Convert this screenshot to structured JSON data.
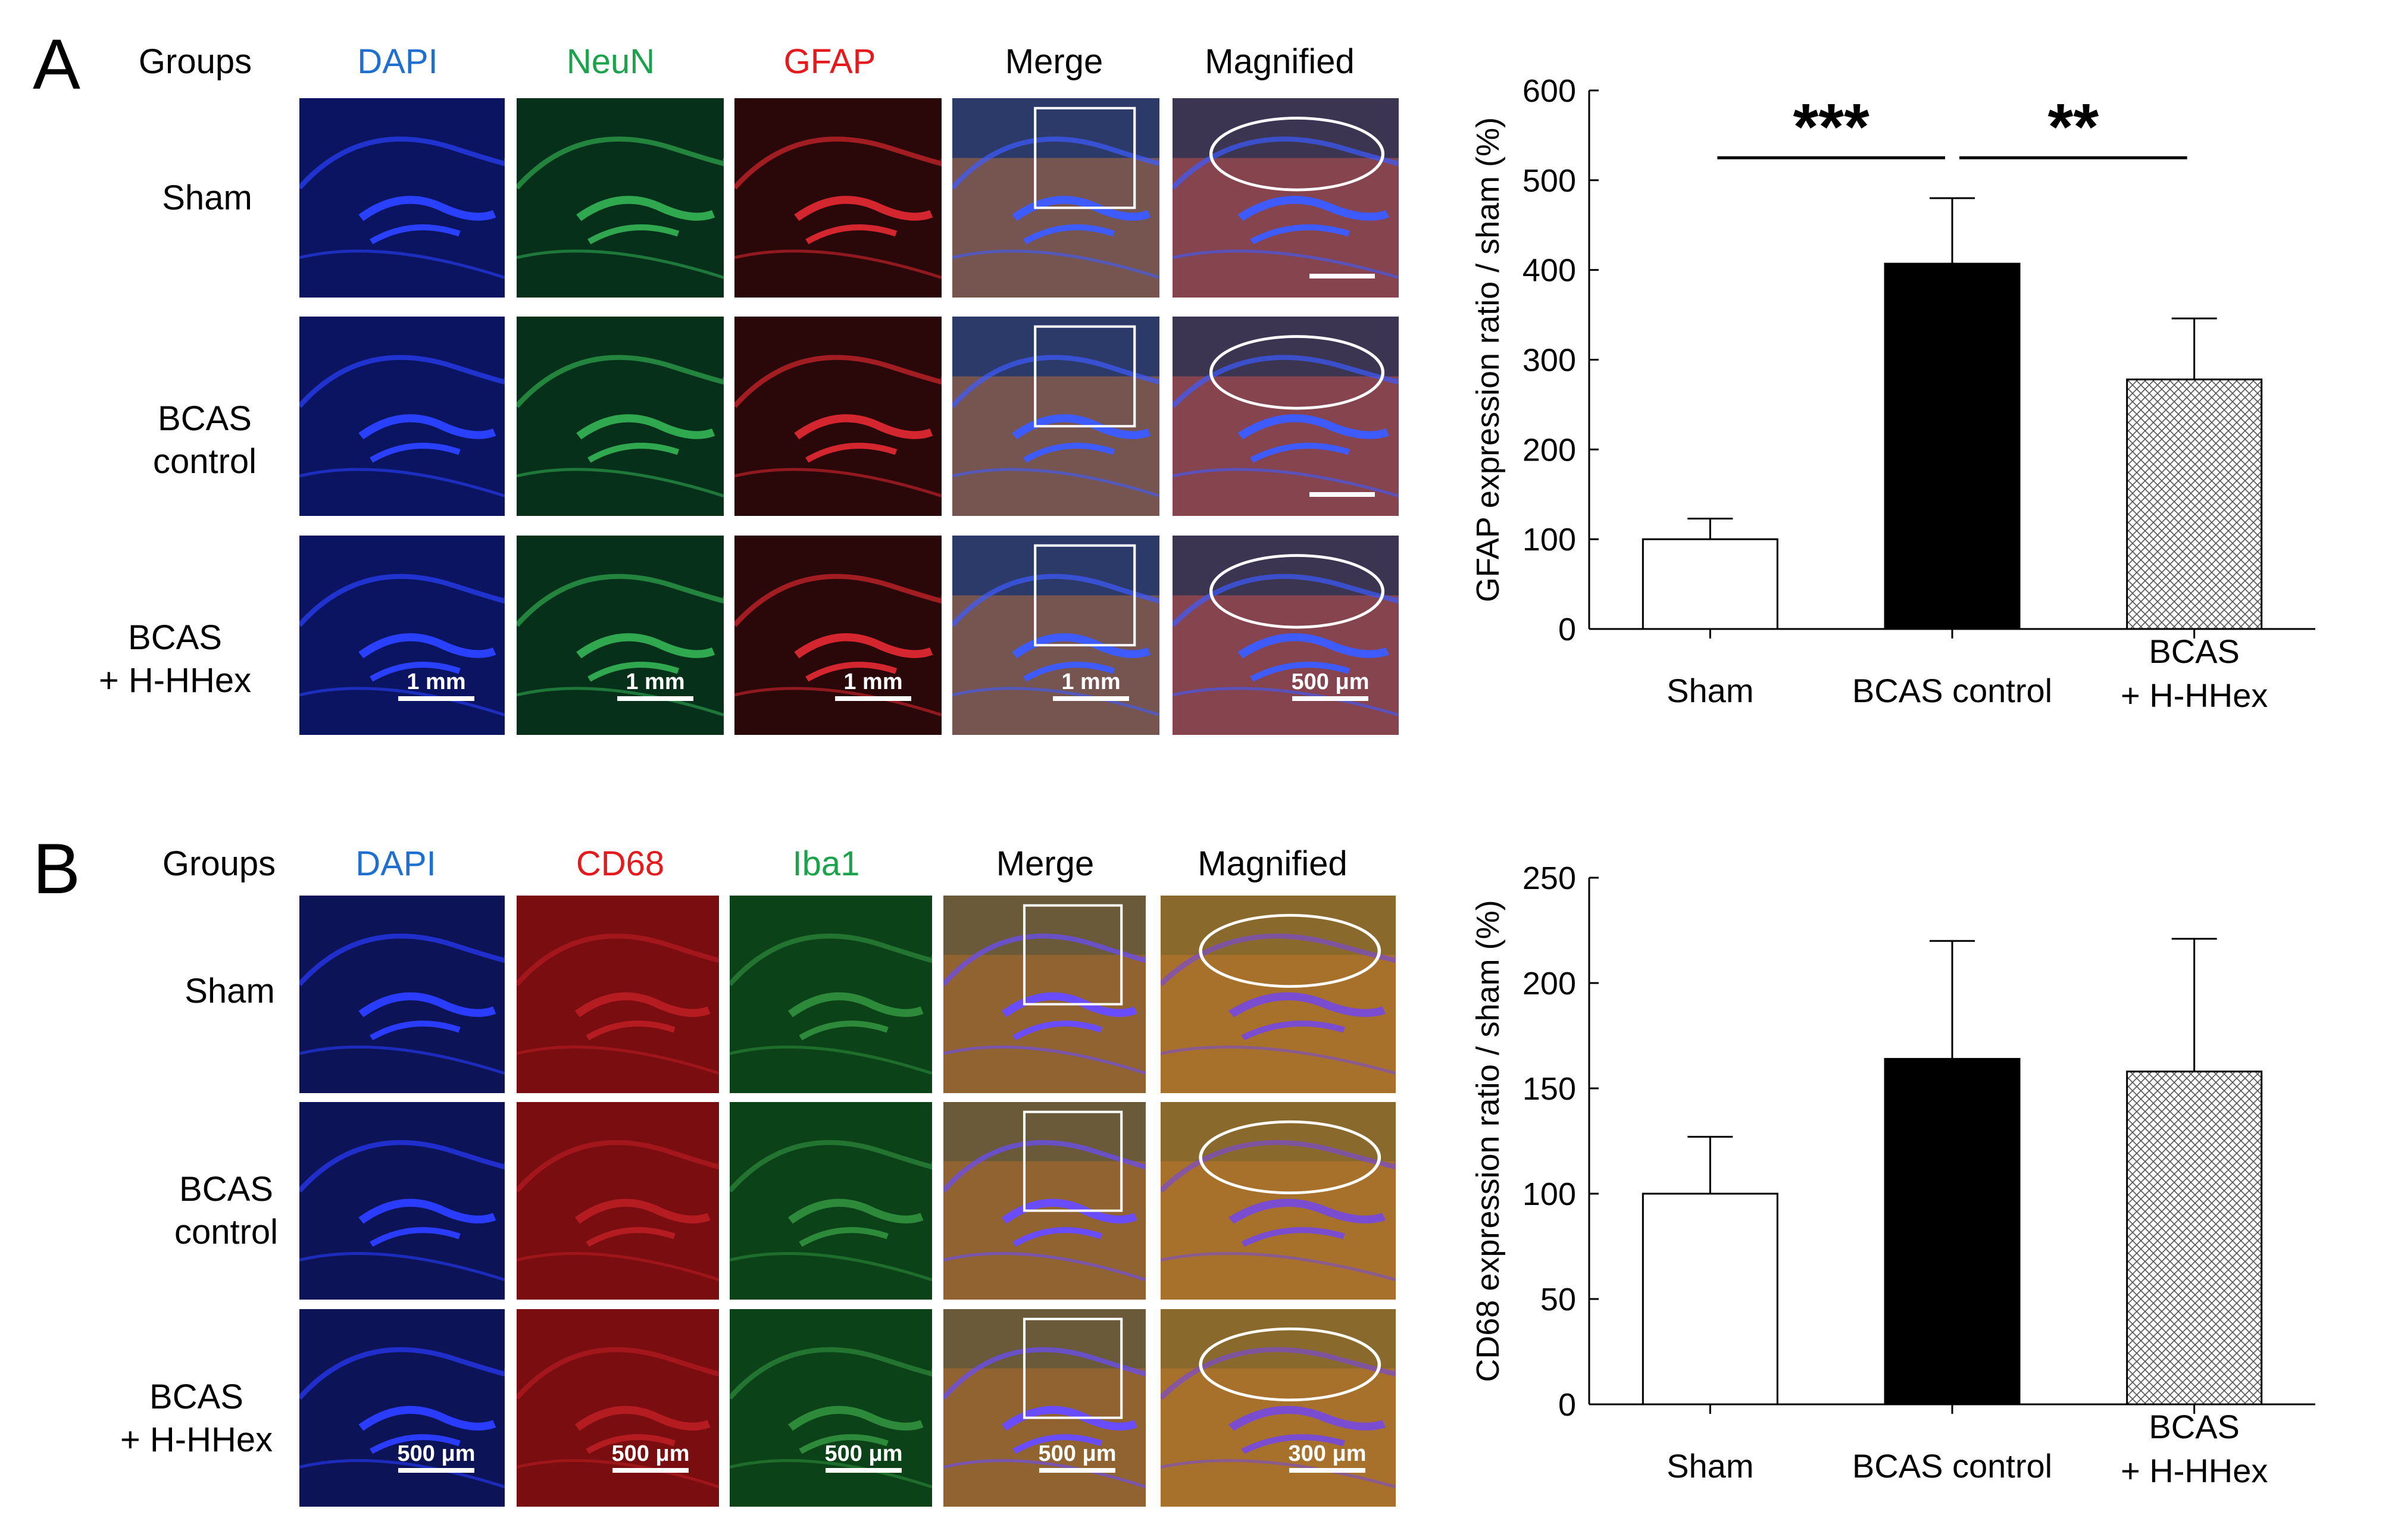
{
  "panel_a": {
    "letter": "A",
    "headers": {
      "groups": "Groups",
      "ch1": "DAPI",
      "ch2": "NeuN",
      "ch3": "GFAP",
      "merge": "Merge",
      "magnified": "Magnified"
    },
    "colors": {
      "ch1": "#1f6fd0",
      "ch2": "#1aa34a",
      "ch3": "#e41a1c"
    },
    "rows": [
      {
        "line1": "Sham",
        "line2": ""
      },
      {
        "line1": "BCAS",
        "line2": "control"
      },
      {
        "line1": "BCAS",
        "line2": "+ H-HHex"
      }
    ],
    "scalebars": [
      "1 mm",
      "1 mm",
      "1 mm",
      "1 mm",
      "500 μm"
    ]
  },
  "panel_b": {
    "letter": "B",
    "headers": {
      "groups": "Groups",
      "ch1": "DAPI",
      "ch2": "CD68",
      "ch3": "Iba1",
      "merge": "Merge",
      "magnified": "Magnified"
    },
    "colors": {
      "ch1": "#1f6fd0",
      "ch2": "#e41a1c",
      "ch3": "#1aa34a"
    },
    "rows": [
      {
        "line1": "Sham",
        "line2": ""
      },
      {
        "line1": "BCAS",
        "line2": "control"
      },
      {
        "line1": "BCAS",
        "line2": "+ H-HHex"
      }
    ],
    "scalebars": [
      "500 μm",
      "500 μm",
      "500 μm",
      "500 μm",
      "300 μm"
    ]
  },
  "chart_data": [
    {
      "type": "bar",
      "categories": [
        "Sham",
        "BCAS control",
        "BCAS\n+ H-HHex"
      ],
      "values": [
        100,
        407,
        278
      ],
      "errors": [
        23,
        73,
        68
      ],
      "fills": [
        "white",
        "black",
        "crosshatch"
      ],
      "ylabel": "GFAP expression ratio / sham (%)",
      "ylim": [
        0,
        600
      ],
      "yticks": [
        0,
        100,
        200,
        300,
        400,
        500,
        600
      ],
      "significance": [
        {
          "from": 0,
          "to": 1,
          "label": "***",
          "y": 525
        },
        {
          "from": 1,
          "to": 2,
          "label": "**",
          "y": 525
        }
      ]
    },
    {
      "type": "bar",
      "categories": [
        "Sham",
        "BCAS control",
        "BCAS\n+ H-HHex"
      ],
      "values": [
        100,
        164,
        158
      ],
      "errors": [
        27,
        56,
        63
      ],
      "fills": [
        "white",
        "black",
        "crosshatch"
      ],
      "ylabel": "CD68 expression ratio / sham (%)",
      "ylim": [
        0,
        250
      ],
      "yticks": [
        0,
        50,
        100,
        150,
        200,
        250
      ],
      "significance": []
    }
  ]
}
